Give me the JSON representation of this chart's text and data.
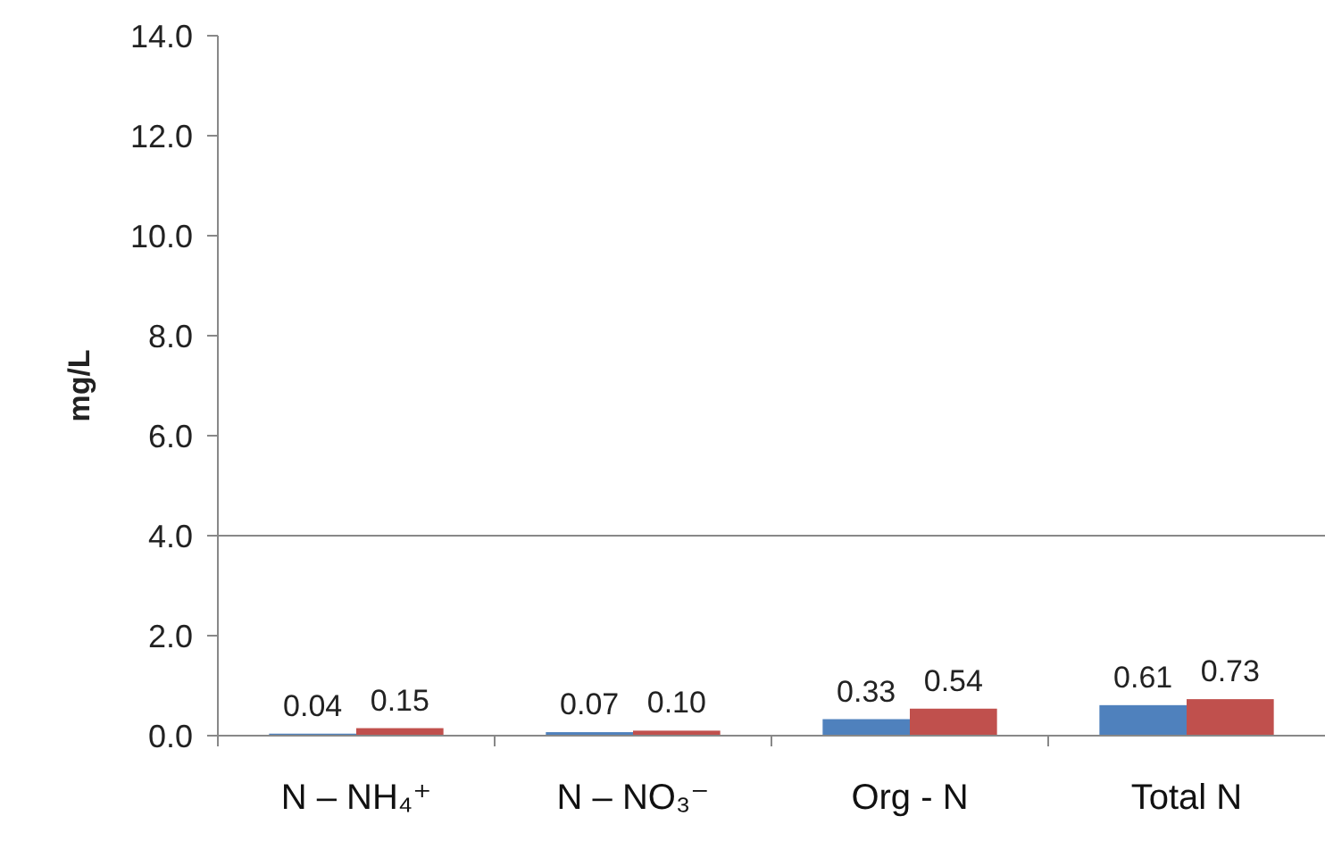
{
  "chart_data": {
    "type": "bar",
    "ylabel": "mg/L",
    "categories": [
      "N – NH₄⁺",
      "N – NO₃⁻",
      "Org - N",
      "Total N"
    ],
    "series": [
      {
        "color": "#4f81bd",
        "values": [
          0.04,
          0.07,
          0.33,
          0.61
        ],
        "value_labels": [
          "0.04",
          "0.07",
          "0.33",
          "0.61"
        ]
      },
      {
        "color": "#c0504d",
        "values": [
          0.15,
          0.1,
          0.54,
          0.73
        ],
        "value_labels": [
          "0.15",
          "0.10",
          "0.54",
          "0.73"
        ]
      }
    ],
    "ylim": [
      0,
      14
    ],
    "yticks": [
      {
        "value": 0,
        "label": "0.0"
      },
      {
        "value": 2,
        "label": "2.0"
      },
      {
        "value": 4,
        "label": "4.0"
      },
      {
        "value": 6,
        "label": "6.0"
      },
      {
        "value": 8,
        "label": "8.0"
      },
      {
        "value": 10,
        "label": "10.0"
      },
      {
        "value": 12,
        "label": "12.0"
      },
      {
        "value": 14,
        "label": "14.0"
      }
    ],
    "ref_lines": [
      {
        "axis": "y",
        "value": 4,
        "color": "#888888"
      }
    ],
    "grid": false
  }
}
